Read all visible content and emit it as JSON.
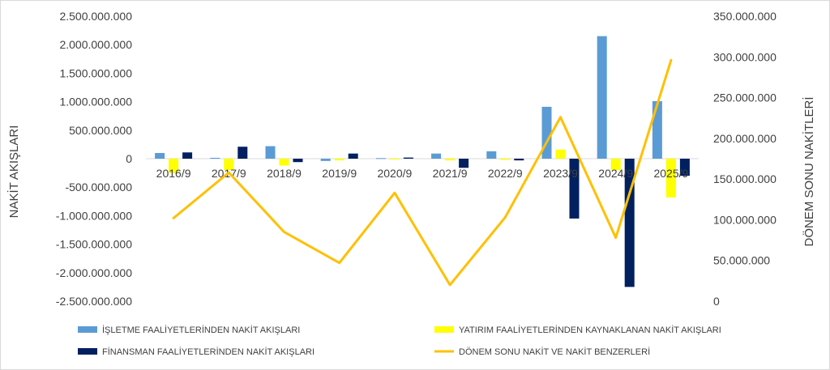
{
  "chart_data": {
    "type": "bar",
    "categories": [
      "2016/9",
      "2017/9",
      "2018/9",
      "2019/9",
      "2020/9",
      "2021/9",
      "2022/9",
      "2023/9",
      "2024/9",
      "2025/9"
    ],
    "y_label": "NAKİT AKIŞLARI",
    "y2_label": "DÖNEM SONU NAKİTLERİ",
    "ylim": [
      -2500000000,
      2500000000
    ],
    "y2lim": [
      0,
      350000000
    ],
    "y_ticks": [
      "2.500.000.000",
      "2.000.000.000",
      "1.500.000.000",
      "1.000.000.000",
      "500.000.000",
      "0",
      "-500.000.000",
      "-1.000.000.000",
      "-1.500.000.000",
      "-2.000.000.000",
      "-2.500.000.000"
    ],
    "y2_ticks": [
      "350.000.000",
      "300.000.000",
      "250.000.000",
      "200.000.000",
      "150.000.000",
      "100.000.000",
      "50.000.000",
      "0"
    ],
    "series": [
      {
        "name": "İŞLETME FAALİYETLERİNDEN NAKİT AKIŞLARI",
        "kind": "bar",
        "axis": "left",
        "color": "#5B9BD5",
        "values": [
          100000000,
          15000000,
          220000000,
          -40000000,
          10000000,
          90000000,
          130000000,
          910000000,
          2150000000,
          1010000000
        ]
      },
      {
        "name": "YATIRIM FAALİYETLERİNDEN KAYNAKLANAN NAKİT AKIŞLARI",
        "kind": "bar",
        "axis": "left",
        "color": "#FFFF00",
        "values": [
          -250000000,
          -200000000,
          -120000000,
          -30000000,
          -10000000,
          -30000000,
          -20000000,
          160000000,
          -200000000,
          -680000000
        ]
      },
      {
        "name": "FİNANSMAN FAALİYETLERİNDEN NAKİT AKIŞLARI",
        "kind": "bar",
        "axis": "left",
        "color": "#002060",
        "values": [
          110000000,
          210000000,
          -60000000,
          90000000,
          20000000,
          -160000000,
          -30000000,
          -1050000000,
          -2250000000,
          -300000000
        ]
      },
      {
        "name": "DÖNEM SONU NAKİT VE NAKİT BENZERLERİ",
        "kind": "line",
        "axis": "right",
        "color": "#FFC000",
        "values": [
          102000000,
          158000000,
          85000000,
          47000000,
          133000000,
          20000000,
          103000000,
          226000000,
          78000000,
          296000000
        ]
      }
    ],
    "legend_position": "bottom",
    "grid": false
  }
}
